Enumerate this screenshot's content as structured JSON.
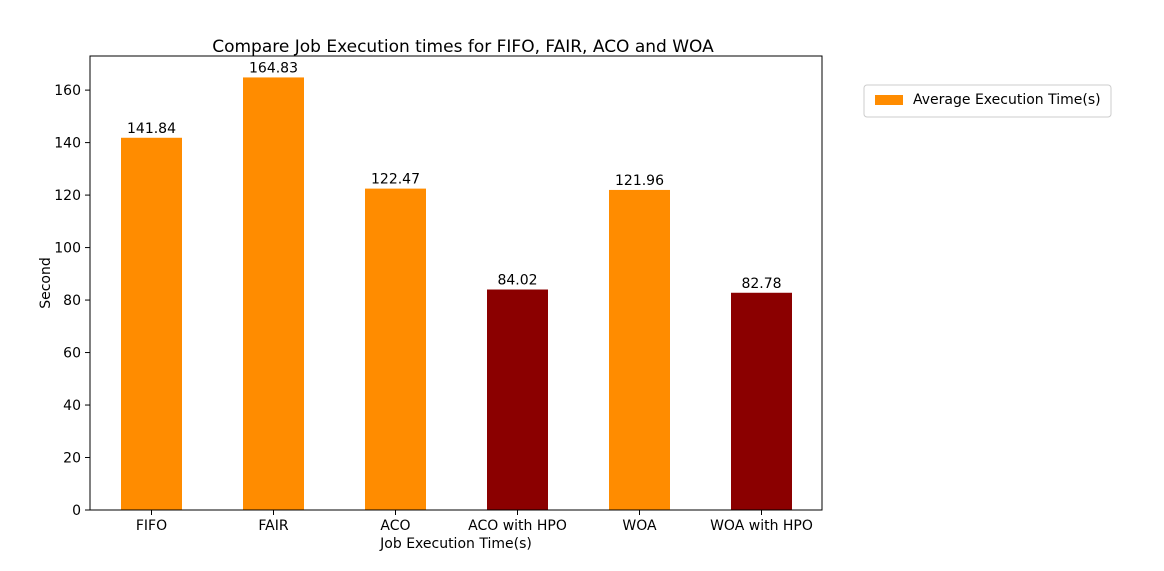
{
  "chart_data": {
    "type": "bar",
    "title": "Compare Job Execution times for FIFO, FAIR, ACO and WOA",
    "xlabel": "Job Execution Time(s)",
    "ylabel": "Second",
    "categories": [
      "FIFO",
      "FAIR",
      "ACO",
      "ACO with HPO",
      "WOA",
      "WOA with HPO"
    ],
    "series": [
      {
        "name": "Average Execution Time(s)",
        "values": [
          141.84,
          164.83,
          122.47,
          84.02,
          121.96,
          82.78
        ]
      }
    ],
    "data_labels": [
      "141.84",
      "164.83",
      "122.47",
      "84.02",
      "121.96",
      "82.78"
    ],
    "bar_colors": [
      "#ff8c00",
      "#ff8c00",
      "#ff8c00",
      "#8b0000",
      "#ff8c00",
      "#8b0000"
    ],
    "ylim": [
      0,
      173
    ],
    "yticks": [
      0,
      20,
      40,
      60,
      80,
      100,
      120,
      140,
      160
    ],
    "grid": false,
    "legend_position": "outside-top-right",
    "legend_color": "#ff8c00"
  }
}
